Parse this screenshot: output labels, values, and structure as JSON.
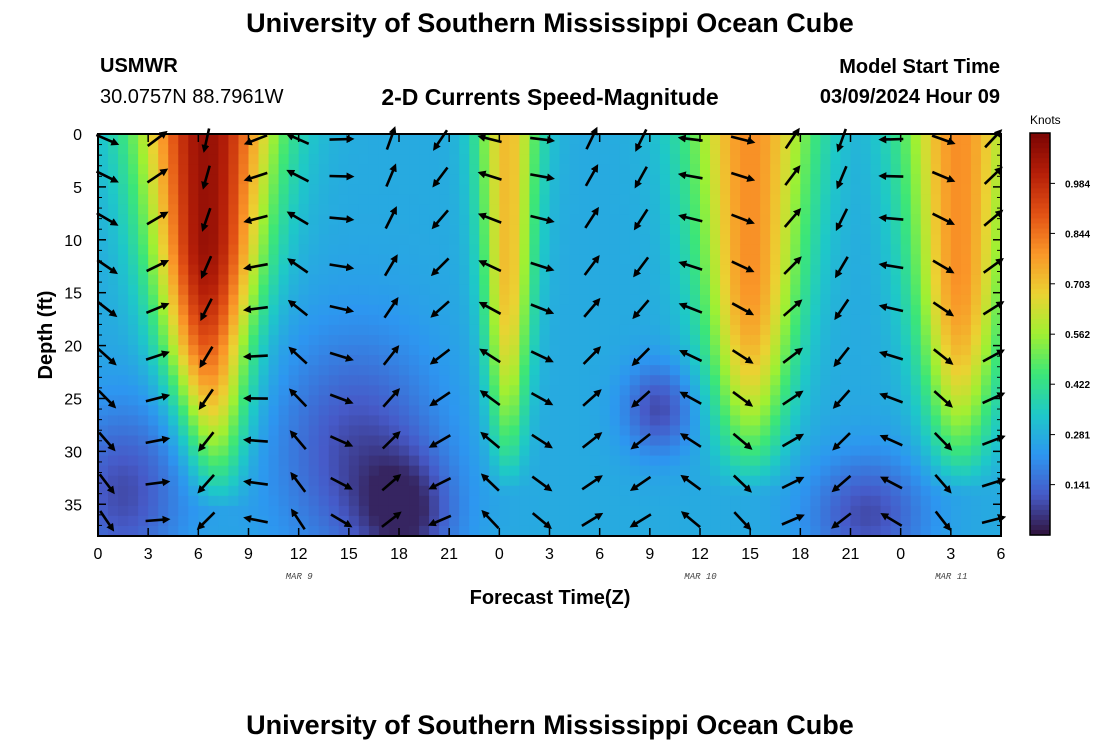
{
  "header": {
    "title": "University of Southern Mississippi Ocean Cube",
    "footer_title": "University of Southern Mississippi Ocean Cube",
    "station_code": "USMWR",
    "station_coords": "30.0757N  88.7961W",
    "product_title": "2-D Currents Speed-Magnitude",
    "model_start_label": "Model Start Time",
    "model_start_value": "03/09/2024 Hour 09"
  },
  "chart_data": {
    "type": "heatmap",
    "title": "2-D Currents Speed-Magnitude",
    "xlabel": "Forecast Time(Z)",
    "ylabel": "Depth (ft)",
    "x_tick_labels": [
      "0",
      "3",
      "6",
      "9",
      "12",
      "15",
      "18",
      "21",
      "0",
      "3",
      "6",
      "9",
      "12",
      "15",
      "18",
      "21",
      "0",
      "3",
      "6"
    ],
    "date_labels": [
      {
        "label": "MAR 9",
        "tick_index": 4
      },
      {
        "label": "MAR 10",
        "tick_index": 12
      },
      {
        "label": "MAR 11",
        "tick_index": 17
      }
    ],
    "hours_range": [
      0,
      54
    ],
    "y_tick_labels": [
      "0",
      "5",
      "10",
      "15",
      "20",
      "25",
      "30",
      "35"
    ],
    "ylim": [
      0,
      38
    ],
    "colorbar": {
      "units": "Knots",
      "ticks": [
        "0.984",
        "0.844",
        "0.703",
        "0.562",
        "0.422",
        "0.281",
        "0.141"
      ],
      "tick_values": [
        0.984,
        0.844,
        0.703,
        0.562,
        0.422,
        0.281,
        0.141
      ],
      "range": [
        0,
        1.125
      ],
      "colormap": "turbo"
    },
    "speed_cores_hours": [
      {
        "center": 6.5,
        "width": 2.8,
        "peak": 1.07
      },
      {
        "center": 24.5,
        "width": 1.3,
        "peak": 0.72
      },
      {
        "center": 39.0,
        "width": 2.6,
        "peak": 0.8
      },
      {
        "center": 51.5,
        "width": 2.4,
        "peak": 0.8
      }
    ],
    "vector_rows_depth_ft": [
      0.5,
      4,
      8,
      12.5,
      16.5,
      21,
      25,
      29,
      33,
      36.5
    ],
    "vector_columns_hours": [
      0.5,
      3.5,
      6.5,
      9.5,
      12,
      14.5,
      17.5,
      20.5,
      23.5,
      26.5,
      29.5,
      32.5,
      35.5,
      38.5,
      41.5,
      44.5,
      47.5,
      50.5,
      53.5
    ]
  }
}
